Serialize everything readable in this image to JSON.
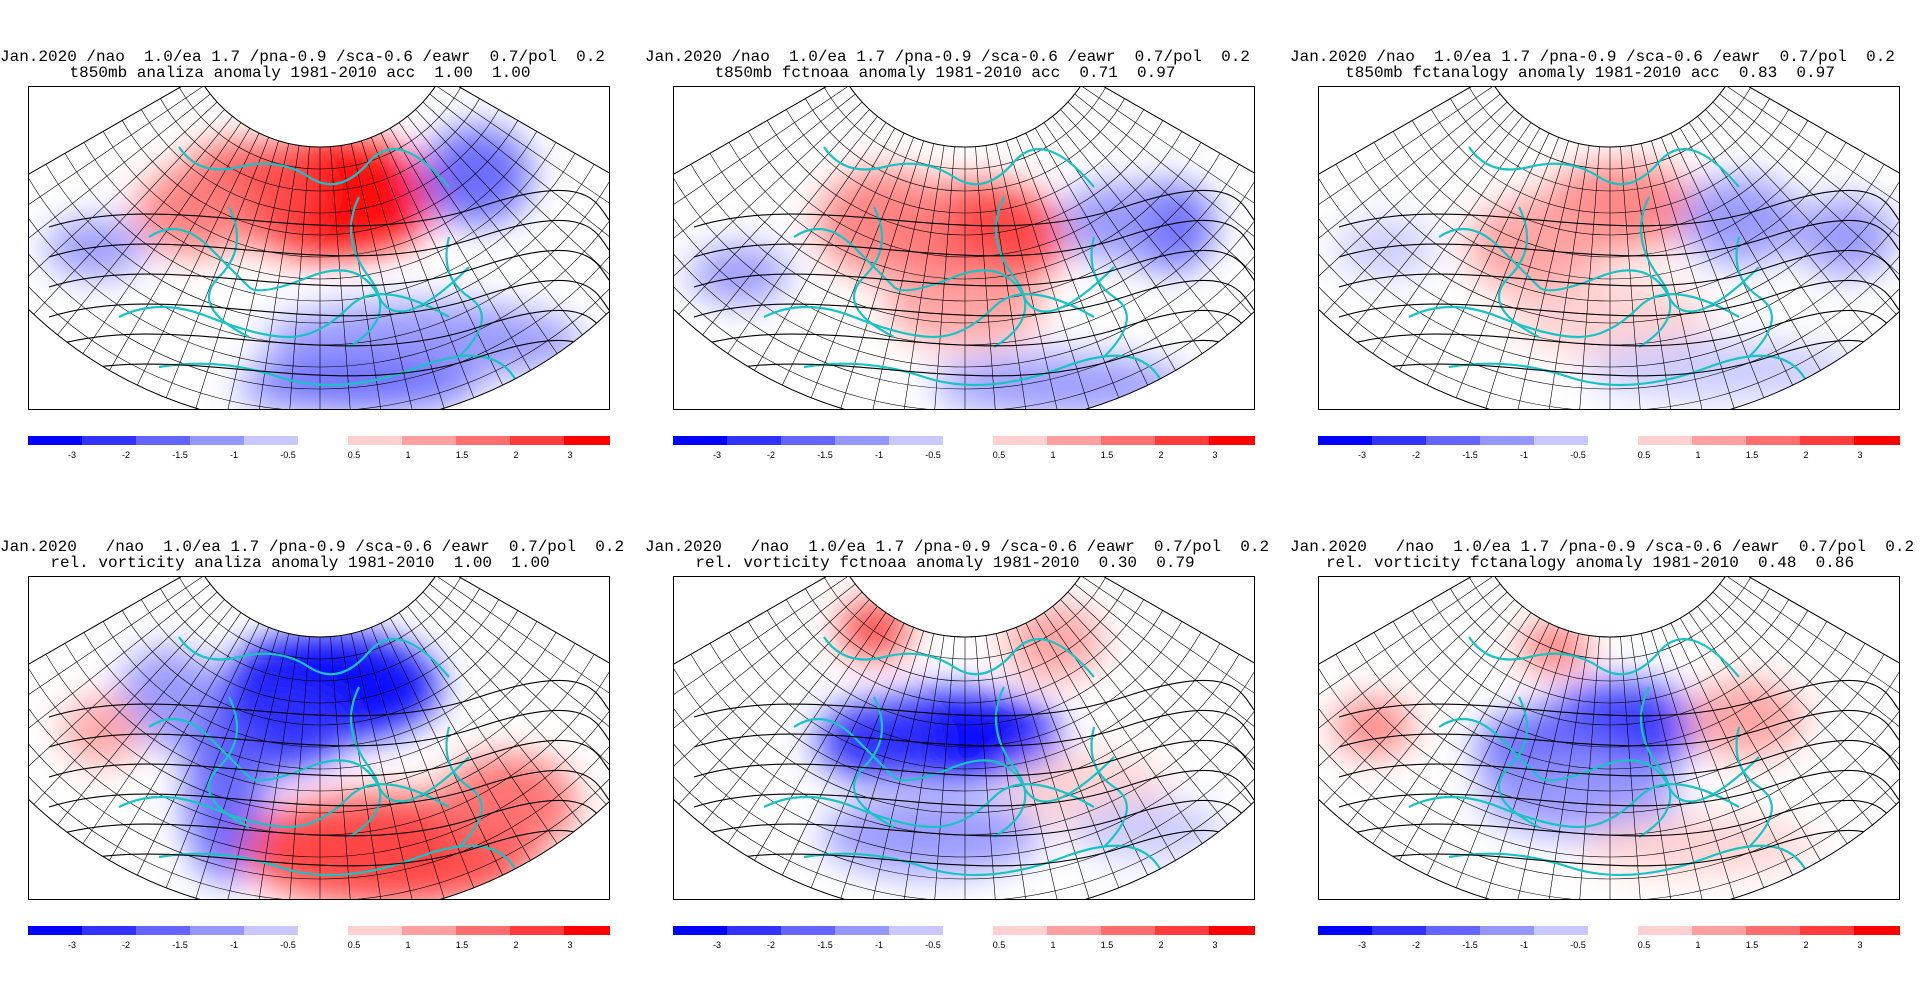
{
  "panels": [
    {
      "id": "t850-analiza",
      "line1": "Jan.2020 /nao  1.0/ea 1.7 /pna-0.9 /sca-0.6 /eawr  0.7/pol  0.2",
      "line2": "t850mb analiza anomaly 1981-2010 acc  1.00  1.00",
      "pattern": "t_an"
    },
    {
      "id": "t850-fctnoaa",
      "line1": "Jan.2020 /nao  1.0/ea 1.7 /pna-0.9 /sca-0.6 /eawr  0.7/pol  0.2",
      "line2": "t850mb fctnoaa anomaly 1981-2010 acc  0.71  0.97",
      "pattern": "t_noaa"
    },
    {
      "id": "t850-fctanalogy",
      "line1": "Jan.2020 /nao  1.0/ea 1.7 /pna-0.9 /sca-0.6 /eawr  0.7/pol  0.2",
      "line2": "t850mb fctanalogy anomaly 1981-2010 acc  0.83  0.97",
      "pattern": "t_analog"
    },
    {
      "id": "vort-analiza",
      "line1": "Jan.2020   /nao  1.0/ea 1.7 /pna-0.9 /sca-0.6 /eawr  0.7/pol  0.2",
      "line2": "rel. vorticity analiza anomaly 1981-2010  1.00  1.00",
      "pattern": "v_an"
    },
    {
      "id": "vort-fctnoaa",
      "line1": "Jan.2020   /nao  1.0/ea 1.7 /pna-0.9 /sca-0.6 /eawr  0.7/pol  0.2",
      "line2": "rel. vorticity fctnoaa anomaly 1981-2010  0.30  0.79",
      "pattern": "v_noaa"
    },
    {
      "id": "vort-fctanalogy",
      "line1": "Jan.2020   /nao  1.0/ea 1.7 /pna-0.9 /sca-0.6 /eawr  0.7/pol  0.2",
      "line2": "rel. vorticity fctanalogy anomaly 1981-2010  0.48  0.86",
      "pattern": "v_analog"
    }
  ],
  "colorbar": {
    "neg_colors": [
      "#0000ff",
      "#3232ff",
      "#6464ff",
      "#9696ff",
      "#c8c8ff"
    ],
    "neg_labels": [
      "-3",
      "-2",
      "-1.5",
      "-1",
      "-0.5"
    ],
    "pos_colors": [
      "#ffd0d0",
      "#ffa0a0",
      "#ff6e6e",
      "#ff3c3c",
      "#ff0000"
    ],
    "pos_labels": [
      "0.5",
      "1",
      "1.5",
      "2",
      "3"
    ]
  },
  "colors": {
    "coast": "#19c3c3",
    "contour": "#000000",
    "grid": "#000000"
  }
}
